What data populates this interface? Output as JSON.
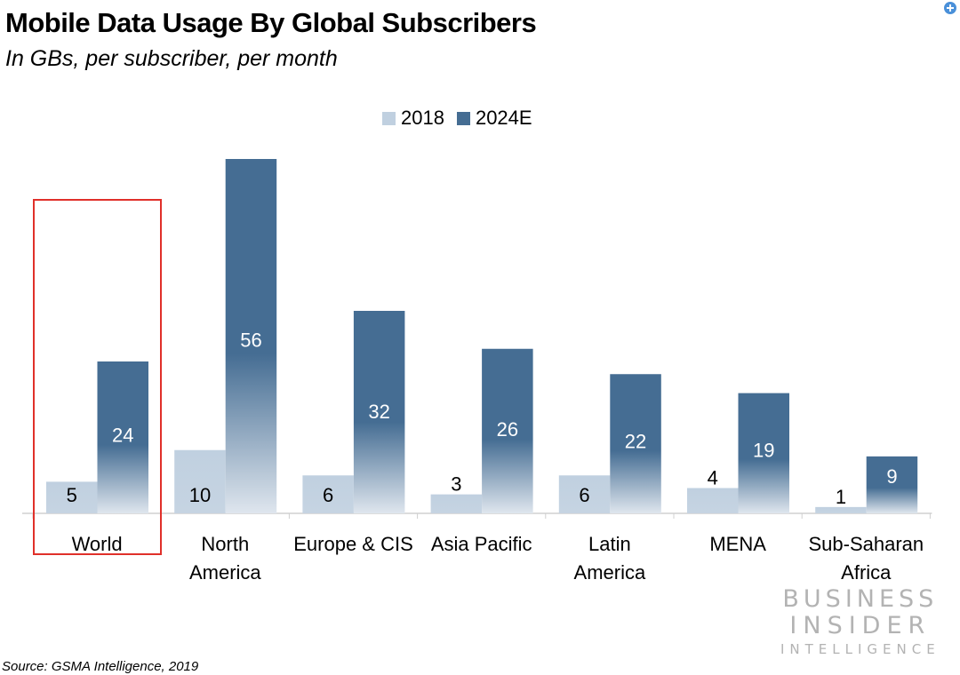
{
  "header": {
    "title": "Mobile Data Usage By Global Subscribers",
    "subtitle": "In GBs, per subscriber, per month"
  },
  "footer": {
    "source": "Source: GSMA Intelligence, 2019"
  },
  "logo": {
    "line1": "BUSINESS",
    "line2": "INSIDER",
    "line3": "INTELLIGENCE"
  },
  "icons": {
    "zoom": "zoom-in-icon"
  },
  "colors": {
    "series_2018": "#c0d0e0",
    "series_2024E": "#456d93",
    "highlight_box": "#e0302a",
    "axis": "#d0d0d0"
  },
  "chart_data": {
    "type": "bar",
    "title": "Mobile Data Usage By Global Subscribers",
    "subtitle": "In GBs, per subscriber, per month",
    "xlabel": "",
    "ylabel": "",
    "ylim": [
      0,
      56
    ],
    "grid": false,
    "legend_position": "top-center",
    "categories": [
      [
        "World"
      ],
      [
        "North",
        "America"
      ],
      [
        "Europe & CIS"
      ],
      [
        "Asia Pacific"
      ],
      [
        "Latin",
        "America"
      ],
      [
        "MENA"
      ],
      [
        "Sub-Saharan",
        "Africa"
      ]
    ],
    "series": [
      {
        "name": "2018",
        "values": [
          5,
          10,
          6,
          3,
          6,
          4,
          1
        ]
      },
      {
        "name": "2024E",
        "values": [
          24,
          56,
          32,
          26,
          22,
          19,
          9
        ]
      }
    ],
    "highlighted_category": "World"
  }
}
